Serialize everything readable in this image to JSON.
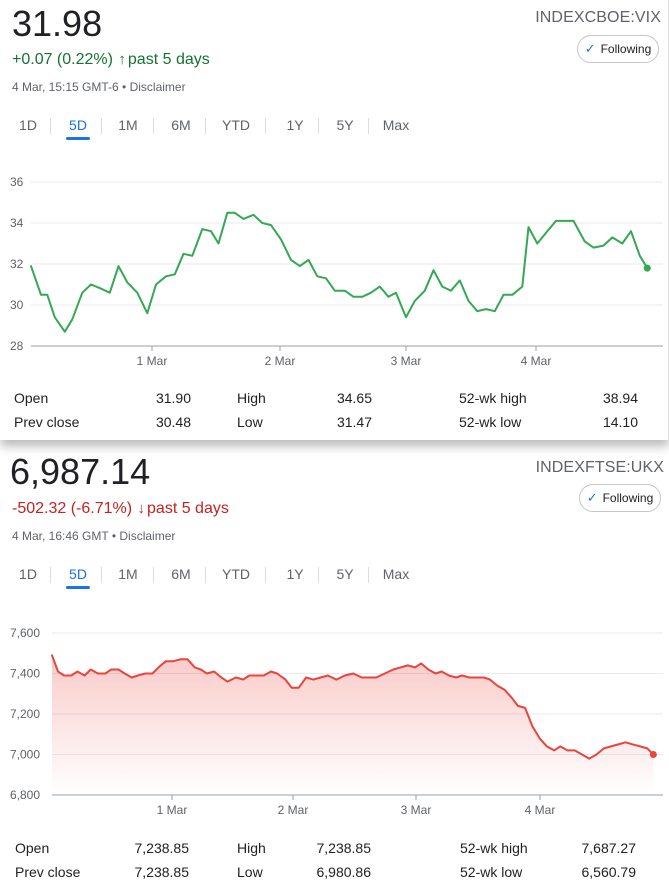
{
  "panels": [
    {
      "price": "31.98",
      "change": "+0.07 (0.22%)",
      "change_arrow": "↑",
      "change_period": "past 5 days",
      "direction": "up",
      "timestamp": "4 Mar, 15:15 GMT-6 • Disclaimer",
      "exchange": "INDEXCBOE:",
      "symbol": "VIX",
      "follow_label": "Following",
      "color": "#34a853",
      "fill": false
    },
    {
      "price": "6,987.14",
      "change": "-502.32 (-6.71%)",
      "change_arrow": "↓",
      "change_period": "past 5 days",
      "direction": "down",
      "timestamp": "4 Mar, 16:46 GMT • Disclaimer",
      "exchange": "INDEXFTSE:",
      "symbol": "UKX",
      "follow_label": "Following",
      "color": "#e8453c",
      "fill": true
    }
  ],
  "tabs": [
    "1D",
    "5D",
    "1M",
    "6M",
    "YTD",
    "1Y",
    "5Y",
    "Max"
  ],
  "active_tab": "5D",
  "stats": [
    {
      "open_label": "Open",
      "open": "31.90",
      "prev_close_label": "Prev close",
      "prev_close": "30.48",
      "high_label": "High",
      "high": "34.65",
      "low_label": "Low",
      "low": "31.47",
      "wk52_high_label": "52-wk high",
      "wk52_high": "38.94",
      "wk52_low_label": "52-wk low",
      "wk52_low": "14.10"
    },
    {
      "open_label": "Open",
      "open": "7,238.85",
      "prev_close_label": "Prev close",
      "prev_close": "7,238.85",
      "high_label": "High",
      "high": "7,238.85",
      "low_label": "Low",
      "low": "6,980.86",
      "wk52_high_label": "52-wk high",
      "wk52_high": "7,687.27",
      "wk52_low_label": "52-wk low",
      "wk52_low": "6,560.79"
    }
  ],
  "chart_data": [
    {
      "type": "line",
      "xlabel": "",
      "ylabel": "",
      "x_tick_labels": [
        "1 Mar",
        "2 Mar",
        "3 Mar",
        "4 Mar"
      ],
      "x_ticks": [
        1,
        2,
        3,
        4
      ],
      "y_ticks": [
        "36",
        "34",
        "32",
        "30",
        "28"
      ],
      "y_tick_values": [
        36,
        34,
        32,
        30,
        28
      ],
      "ylim": [
        28,
        36
      ],
      "xlim": [
        0.0,
        5.0
      ],
      "grid": true,
      "series": [
        {
          "values": [
            [
              0.0,
              31.9
            ],
            [
              0.08,
              30.5
            ],
            [
              0.13,
              30.5
            ],
            [
              0.19,
              29.4
            ],
            [
              0.27,
              28.7
            ],
            [
              0.33,
              29.3
            ],
            [
              0.41,
              30.6
            ],
            [
              0.48,
              31.0
            ],
            [
              0.56,
              30.8
            ],
            [
              0.63,
              30.6
            ],
            [
              0.7,
              31.9
            ],
            [
              0.77,
              31.1
            ],
            [
              0.85,
              30.6
            ],
            [
              0.93,
              29.6
            ],
            [
              1.0,
              31.0
            ],
            [
              1.08,
              31.4
            ],
            [
              1.15,
              31.5
            ],
            [
              1.22,
              32.5
            ],
            [
              1.29,
              32.4
            ],
            [
              1.37,
              33.7
            ],
            [
              1.44,
              33.6
            ],
            [
              1.5,
              33.0
            ],
            [
              1.57,
              34.5
            ],
            [
              1.63,
              34.5
            ],
            [
              1.7,
              34.2
            ],
            [
              1.78,
              34.4
            ],
            [
              1.85,
              34.0
            ],
            [
              1.92,
              33.9
            ],
            [
              2.0,
              33.2
            ],
            [
              2.08,
              32.2
            ],
            [
              2.15,
              31.9
            ],
            [
              2.22,
              32.2
            ],
            [
              2.29,
              31.4
            ],
            [
              2.36,
              31.3
            ],
            [
              2.43,
              30.7
            ],
            [
              2.51,
              30.7
            ],
            [
              2.58,
              30.4
            ],
            [
              2.65,
              30.4
            ],
            [
              2.72,
              30.6
            ],
            [
              2.79,
              30.9
            ],
            [
              2.86,
              30.4
            ],
            [
              2.92,
              30.6
            ],
            [
              3.0,
              29.4
            ],
            [
              3.07,
              30.2
            ],
            [
              3.15,
              30.7
            ],
            [
              3.22,
              31.7
            ],
            [
              3.29,
              30.9
            ],
            [
              3.36,
              30.7
            ],
            [
              3.43,
              31.2
            ],
            [
              3.5,
              30.2
            ],
            [
              3.57,
              29.7
            ],
            [
              3.64,
              29.8
            ],
            [
              3.71,
              29.7
            ],
            [
              3.78,
              30.5
            ],
            [
              3.85,
              30.5
            ],
            [
              3.93,
              30.9
            ],
            [
              3.98,
              33.8
            ],
            [
              4.05,
              33.0
            ],
            [
              4.13,
              33.6
            ],
            [
              4.2,
              34.1
            ],
            [
              4.27,
              34.1
            ],
            [
              4.34,
              34.1
            ],
            [
              4.43,
              33.1
            ],
            [
              4.5,
              32.8
            ],
            [
              4.58,
              32.9
            ],
            [
              4.65,
              33.3
            ],
            [
              4.73,
              33.0
            ],
            [
              4.8,
              33.6
            ],
            [
              4.87,
              32.4
            ],
            [
              4.93,
              31.8
            ]
          ]
        }
      ]
    },
    {
      "type": "area",
      "xlabel": "",
      "ylabel": "",
      "x_tick_labels": [
        "1 Mar",
        "2 Mar",
        "3 Mar",
        "4 Mar"
      ],
      "x_ticks": [
        1,
        2,
        3,
        4
      ],
      "y_ticks": [
        "7,600",
        "7,400",
        "7,200",
        "7,000",
        "6,800"
      ],
      "y_tick_values": [
        7600,
        7400,
        7200,
        7000,
        6800
      ],
      "ylim": [
        6800,
        7600
      ],
      "xlim": [
        0.0,
        5.0
      ],
      "grid": true,
      "series": [
        {
          "values": [
            [
              0.0,
              7490
            ],
            [
              0.05,
              7410
            ],
            [
              0.1,
              7390
            ],
            [
              0.16,
              7390
            ],
            [
              0.21,
              7410
            ],
            [
              0.27,
              7390
            ],
            [
              0.32,
              7420
            ],
            [
              0.38,
              7400
            ],
            [
              0.44,
              7400
            ],
            [
              0.49,
              7420
            ],
            [
              0.55,
              7420
            ],
            [
              0.6,
              7400
            ],
            [
              0.66,
              7380
            ],
            [
              0.71,
              7390
            ],
            [
              0.77,
              7400
            ],
            [
              0.83,
              7400
            ],
            [
              0.88,
              7430
            ],
            [
              0.94,
              7460
            ],
            [
              1.0,
              7460
            ],
            [
              1.06,
              7470
            ],
            [
              1.12,
              7470
            ],
            [
              1.18,
              7430
            ],
            [
              1.23,
              7420
            ],
            [
              1.28,
              7400
            ],
            [
              1.34,
              7410
            ],
            [
              1.4,
              7380
            ],
            [
              1.45,
              7360
            ],
            [
              1.52,
              7380
            ],
            [
              1.58,
              7370
            ],
            [
              1.63,
              7390
            ],
            [
              1.69,
              7390
            ],
            [
              1.75,
              7390
            ],
            [
              1.81,
              7410
            ],
            [
              1.86,
              7400
            ],
            [
              1.93,
              7370
            ],
            [
              1.98,
              7330
            ],
            [
              2.04,
              7330
            ],
            [
              2.1,
              7380
            ],
            [
              2.16,
              7370
            ],
            [
              2.22,
              7380
            ],
            [
              2.28,
              7390
            ],
            [
              2.35,
              7370
            ],
            [
              2.42,
              7390
            ],
            [
              2.49,
              7400
            ],
            [
              2.56,
              7380
            ],
            [
              2.62,
              7380
            ],
            [
              2.68,
              7380
            ],
            [
              2.75,
              7400
            ],
            [
              2.82,
              7420
            ],
            [
              2.88,
              7430
            ],
            [
              2.94,
              7440
            ],
            [
              3.0,
              7430
            ],
            [
              3.05,
              7450
            ],
            [
              3.11,
              7420
            ],
            [
              3.17,
              7400
            ],
            [
              3.22,
              7410
            ],
            [
              3.28,
              7390
            ],
            [
              3.34,
              7380
            ],
            [
              3.39,
              7390
            ],
            [
              3.45,
              7380
            ],
            [
              3.51,
              7380
            ],
            [
              3.57,
              7380
            ],
            [
              3.62,
              7370
            ],
            [
              3.68,
              7340
            ],
            [
              3.74,
              7320
            ],
            [
              3.8,
              7280
            ],
            [
              3.85,
              7240
            ],
            [
              3.91,
              7230
            ],
            [
              3.97,
              7140
            ],
            [
              4.03,
              7080
            ],
            [
              4.09,
              7040
            ],
            [
              4.15,
              7020
            ],
            [
              4.2,
              7040
            ],
            [
              4.26,
              7020
            ],
            [
              4.32,
              7020
            ],
            [
              4.38,
              7000
            ],
            [
              4.44,
              6980
            ],
            [
              4.5,
              7000
            ],
            [
              4.56,
              7030
            ],
            [
              4.62,
              7040
            ],
            [
              4.68,
              7050
            ],
            [
              4.74,
              7060
            ],
            [
              4.8,
              7050
            ],
            [
              4.86,
              7040
            ],
            [
              4.92,
              7030
            ],
            [
              4.97,
              7000
            ]
          ]
        }
      ]
    }
  ]
}
